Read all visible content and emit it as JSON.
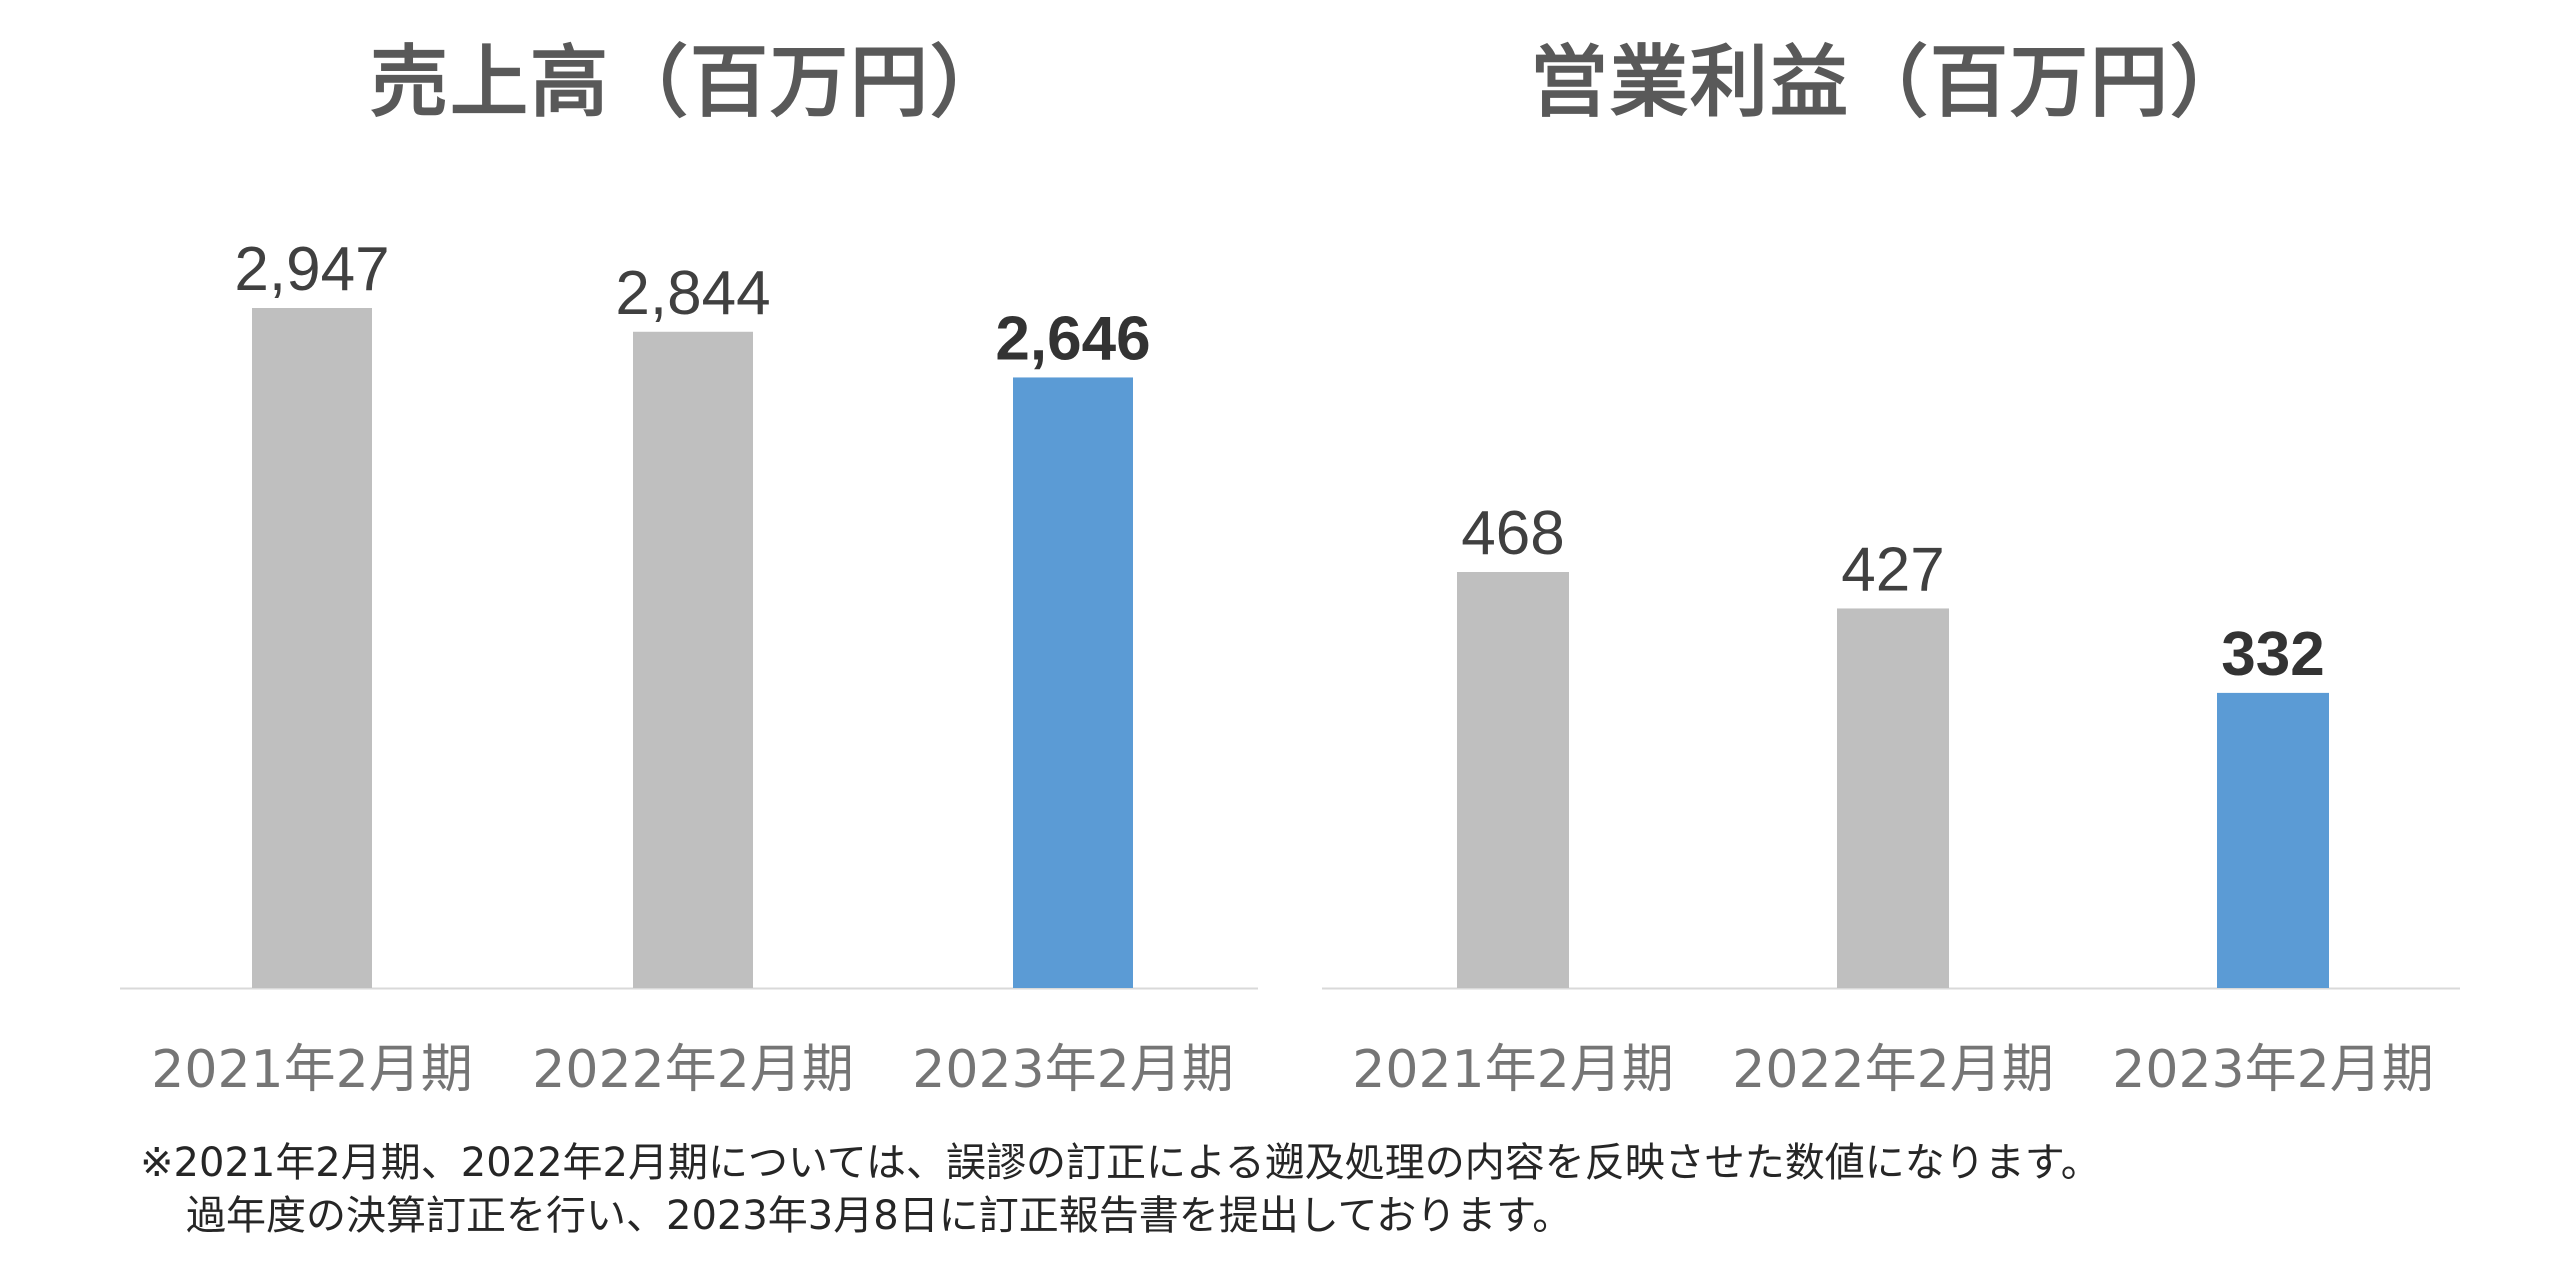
{
  "chart_data": [
    {
      "type": "bar",
      "title": "売上高（百万円）",
      "categories": [
        "2021年2月期",
        "2022年2月期",
        "2023年2月期"
      ],
      "values": [
        2947,
        2844,
        2646
      ],
      "value_labels": [
        "2,947",
        "2,844",
        "2,646"
      ],
      "highlight_index": 2,
      "ylim": [
        0,
        2947
      ],
      "grid": false,
      "colors": {
        "default": "#bfbfbf",
        "highlight": "#5b9bd5"
      }
    },
    {
      "type": "bar",
      "title": "営業利益（百万円）",
      "categories": [
        "2021年2月期",
        "2022年2月期",
        "2023年2月期"
      ],
      "values": [
        468,
        427,
        332
      ],
      "value_labels": [
        "468",
        "427",
        "332"
      ],
      "highlight_index": 2,
      "ylim": [
        0,
        765
      ],
      "grid": false,
      "colors": {
        "default": "#bfbfbf",
        "highlight": "#5b9bd5"
      }
    }
  ],
  "footnote": {
    "line1": "※2021年2月期、2022年2月期については、誤謬の訂正による遡及処理の内容を反映させた数値になります。",
    "line2": "過年度の決算訂正を行い、2023年3月8日に訂正報告書を提出しております。"
  }
}
